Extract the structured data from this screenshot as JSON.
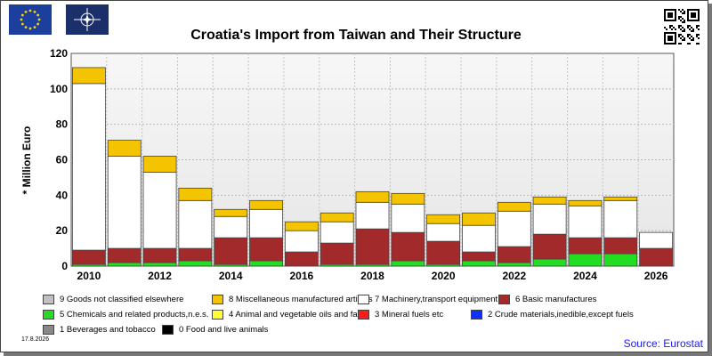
{
  "colors": {
    "c9": "#c0c0c0",
    "c8": "#f5c400",
    "c7": "#ffffff",
    "c6": "#a32a2a",
    "c5": "#22dd22",
    "c4": "#ffff33",
    "c3": "#ff1a1a",
    "c2": "#1030ff",
    "c1": "#888888",
    "c0": "#000000",
    "plot_bg": "#e9e9e9",
    "source_color": "#1a1aff"
  },
  "icons": {
    "flag1": "eu-flag-icon",
    "flag2": "nato-flag-icon",
    "qr": "qr-code-icon"
  },
  "chart_data": {
    "type": "bar",
    "title": "Croatia's Import from Taiwan and Their Structure",
    "ylabel": "* Million Euro",
    "xlabel": "",
    "ylim": [
      0,
      120
    ],
    "y_ticks": [
      0,
      20,
      40,
      60,
      80,
      100,
      120
    ],
    "x_tick_labels": [
      "2010",
      "2012",
      "2014",
      "2016",
      "2018",
      "2020",
      "2022",
      "2024",
      "2026"
    ],
    "grid": true,
    "categories": [
      "2010",
      "2011",
      "2012",
      "2013",
      "2014",
      "2015",
      "2016",
      "2017",
      "2018",
      "2019",
      "2020",
      "2021",
      "2022",
      "2023",
      "2024",
      "2025",
      "2026"
    ],
    "series": [
      {
        "name": "0 Food and live animals",
        "key": "c0",
        "values": [
          0,
          0,
          0,
          0,
          0,
          0,
          0,
          0,
          0,
          0,
          0,
          0,
          0,
          0,
          0,
          0,
          0
        ]
      },
      {
        "name": "1 Beverages and tobacco",
        "key": "c1",
        "values": [
          0,
          0,
          0,
          0,
          0,
          0,
          0,
          0,
          0,
          0,
          0,
          0,
          0,
          0,
          0,
          0,
          0
        ]
      },
      {
        "name": "2 Crude materials,inedible,except fuels",
        "key": "c2",
        "values": [
          0,
          0,
          0,
          0,
          0,
          0,
          0,
          0,
          0,
          0,
          0,
          0,
          0,
          0,
          0,
          0,
          0
        ]
      },
      {
        "name": "3 Mineral fuels etc",
        "key": "c3",
        "values": [
          0,
          0,
          0,
          0,
          0,
          0,
          0,
          0,
          0,
          0,
          0,
          0,
          0,
          0,
          0,
          0,
          0
        ]
      },
      {
        "name": "4 Animal and vegetable oils and fats",
        "key": "c4",
        "values": [
          0,
          0,
          0,
          0,
          0,
          0,
          0,
          0,
          0,
          0,
          0,
          0,
          0,
          0,
          0,
          0,
          0
        ]
      },
      {
        "name": "5 Chemicals and related products,n.e.s.",
        "key": "c5",
        "values": [
          1,
          2,
          2,
          3,
          1,
          3,
          0,
          1,
          1,
          3,
          1,
          3,
          2,
          4,
          7,
          7,
          0
        ]
      },
      {
        "name": "6 Basic manufactures",
        "key": "c6",
        "values": [
          8,
          8,
          8,
          7,
          15,
          13,
          8,
          12,
          20,
          16,
          13,
          5,
          9,
          14,
          9,
          9,
          10
        ]
      },
      {
        "name": "7 Machinery,transport equipment",
        "key": "c7",
        "values": [
          94,
          52,
          43,
          27,
          12,
          16,
          12,
          12,
          15,
          16,
          10,
          15,
          20,
          17,
          18,
          21,
          9
        ]
      },
      {
        "name": "8 Miscellaneous manufactured articles",
        "key": "c8",
        "values": [
          9,
          9,
          9,
          7,
          4,
          5,
          5,
          5,
          6,
          6,
          5,
          7,
          5,
          4,
          3,
          2,
          0
        ]
      },
      {
        "name": "9 Goods not classified elsewhere",
        "key": "c9",
        "values": [
          0,
          0,
          0,
          0,
          0,
          0,
          0,
          0,
          0,
          0,
          0,
          0,
          0,
          0,
          0,
          0,
          0
        ]
      }
    ]
  },
  "legend": [
    {
      "label": "9 Goods not classified elsewhere",
      "key": "c9"
    },
    {
      "label": "8 Miscellaneous manufactured articles",
      "key": "c8"
    },
    {
      "label": "7 Machinery,transport equipment",
      "key": "c7"
    },
    {
      "label": "6 Basic manufactures",
      "key": "c6"
    },
    {
      "label": "5 Chemicals and related products,n.e.s.",
      "key": "c5"
    },
    {
      "label": "4 Animal and vegetable oils and fats",
      "key": "c4"
    },
    {
      "label": "3 Mineral fuels etc",
      "key": "c3"
    },
    {
      "label": "2 Crude materials,inedible,except fuels",
      "key": "c2"
    },
    {
      "label": "1 Beverages and tobacco",
      "key": "c1"
    },
    {
      "label": "0 Food and live animals",
      "key": "c0"
    }
  ],
  "footer": {
    "date": "17.8.2026",
    "source": "Source: Eurostat"
  }
}
